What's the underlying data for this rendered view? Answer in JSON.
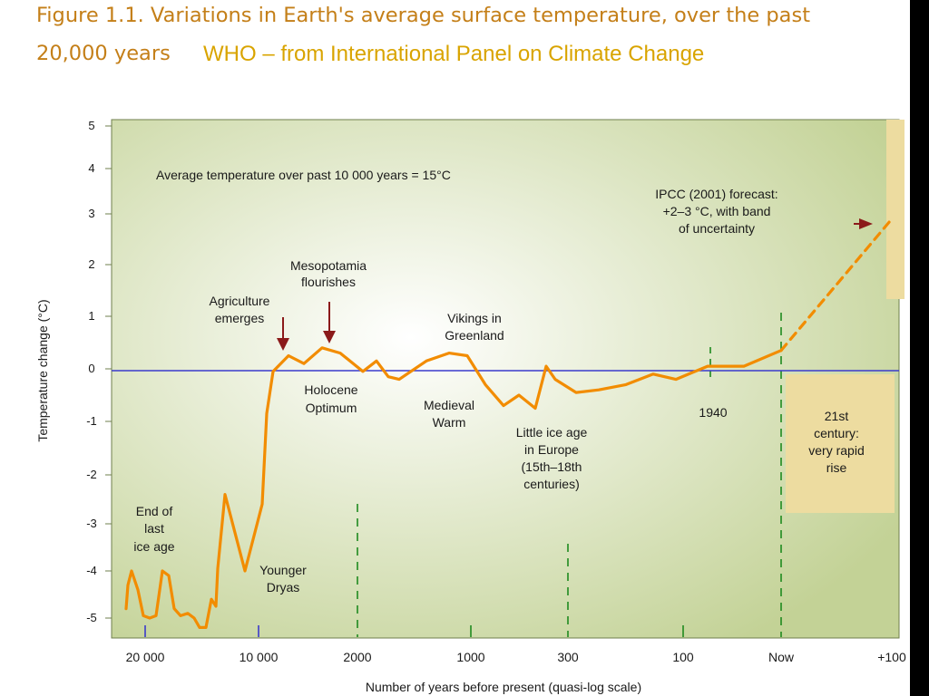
{
  "header": {
    "title_line1": "Figure 1.1. Variations in Earth's average surface temperature, over the past",
    "title_line2": "20,000 years",
    "subtitle": "WHO – from International Panel on Climate Change"
  },
  "colors": {
    "title": "#c47f18",
    "subtitle": "#d9a400",
    "line": "#f28c00",
    "baseline": "#3a3acc",
    "plot_bg_center": "#ffffff",
    "plot_bg_edge": "#c3d296",
    "annotation_box": "#eddca0",
    "arrow": "#8b1a1a",
    "marker_green": "#1f8a1f"
  },
  "chart_data": {
    "type": "line",
    "ylabel": "Temperature change (°C)",
    "xlabel": "Number of years before present (quasi-log scale)",
    "ylim": [
      -5,
      5
    ],
    "y_ticks": [
      "5",
      "4",
      "3",
      "2",
      "1",
      "0",
      "-1",
      "-2",
      "-3",
      "-4",
      "-5"
    ],
    "x_tick_labels": [
      "20 000",
      "10 000",
      "2000",
      "1000",
      "300",
      "100",
      "Now",
      "+100"
    ],
    "x_scale": "quasi-log",
    "grid": false,
    "baseline_y": 0,
    "series": [
      {
        "style": "solid",
        "points": [
          [
            "20 000",
            -4.8
          ],
          [
            "20 000",
            -4.3
          ],
          [
            "20 000",
            -4.0
          ],
          [
            "20 000",
            -4.4
          ],
          [
            "20 000",
            -4.95
          ],
          [
            "20 000",
            -5.0
          ],
          [
            "20 000",
            -4.95
          ],
          [
            "20 000",
            -4.0
          ],
          [
            "20 000",
            -4.1
          ],
          [
            "20 000",
            -4.8
          ],
          [
            "20 000",
            -4.95
          ],
          [
            "20 000",
            -4.9
          ],
          [
            "20 000",
            -5.0
          ],
          [
            "20 000",
            -5.2
          ],
          [
            "20 000",
            -5.2
          ],
          [
            "20 000",
            -4.6
          ],
          [
            "20 000",
            -4.75
          ],
          [
            "20 000",
            -3.95
          ],
          [
            "10 000",
            -2.4
          ],
          [
            "10 000",
            -4.0
          ],
          [
            "10 000",
            -2.6
          ],
          [
            "10 000",
            -0.85
          ],
          [
            "10 000",
            -0.05
          ],
          [
            "2000",
            0.25
          ],
          [
            "2000",
            0.1
          ],
          [
            "2000",
            0.4
          ],
          [
            "2000",
            0.3
          ],
          [
            "2000",
            -0.05
          ],
          [
            "2000",
            0.15
          ],
          [
            "2000",
            -0.15
          ],
          [
            "1000",
            -0.2
          ],
          [
            "1000",
            0.15
          ],
          [
            "1000",
            0.3
          ],
          [
            "1000",
            0.25
          ],
          [
            "1000",
            -0.3
          ],
          [
            "1000",
            -0.7
          ],
          [
            "300",
            -0.5
          ],
          [
            "300",
            -0.75
          ],
          [
            "300",
            0.05
          ],
          [
            "300",
            -0.2
          ],
          [
            "300",
            -0.45
          ],
          [
            "300",
            -0.4
          ],
          [
            "100",
            -0.3
          ],
          [
            "100",
            -0.1
          ],
          [
            "100",
            -0.2
          ],
          [
            "100",
            0.05
          ],
          [
            "100",
            0.05
          ],
          [
            "Now",
            0.35
          ]
        ]
      },
      {
        "style": "dashed",
        "points": [
          [
            "Now",
            0.35
          ],
          [
            "+100",
            2.9
          ]
        ]
      }
    ],
    "annotations": [
      "Average temperature over past 10 000 years = 15°C",
      "IPCC (2001) forecast:",
      "+2–3 °C, with band",
      "of uncertainty",
      "Mesopotamia",
      "flourishes",
      "Agriculture",
      "emerges",
      "Vikings in",
      "Greenland",
      "Holocene",
      "Optimum",
      "Medieval",
      "Warm",
      "Little ice age",
      "in Europe",
      "(15th–18th",
      "centuries)",
      "1940",
      "21st",
      "century:",
      "very rapid",
      "rise",
      "End of",
      "last",
      "ice age",
      "Younger",
      "Dryas"
    ]
  }
}
